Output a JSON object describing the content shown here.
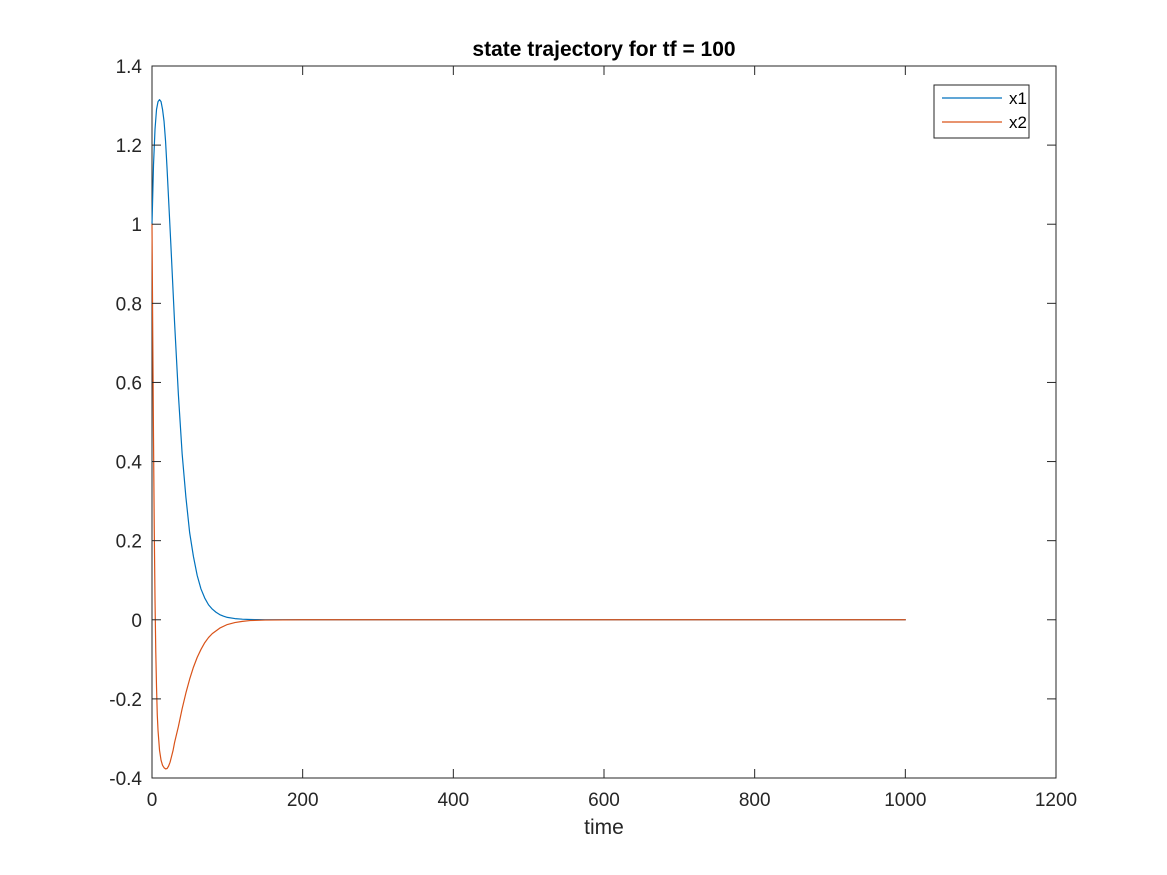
{
  "chart_data": {
    "type": "line",
    "title": "state trajectory for tf = 100",
    "xlabel": "time",
    "ylabel": "",
    "xlim": [
      0,
      1200
    ],
    "ylim": [
      -0.4,
      1.4
    ],
    "xticks": [
      0,
      200,
      400,
      600,
      800,
      1000,
      1200
    ],
    "yticks": [
      -0.4,
      -0.2,
      0,
      0.2,
      0.4,
      0.6,
      0.8,
      1,
      1.2,
      1.4
    ],
    "xtick_labels": [
      "0",
      "200",
      "400",
      "600",
      "800",
      "1000",
      "1200"
    ],
    "ytick_labels": [
      "-0.4",
      "-0.2",
      "0",
      "0.2",
      "0.4",
      "0.6",
      "0.8",
      "1",
      "1.2",
      "1.4"
    ],
    "grid": false,
    "legend_position": "top-right",
    "series": [
      {
        "name": "x1",
        "color": "#0072BD",
        "x": [
          0,
          2,
          4,
          6,
          8,
          10,
          12,
          14,
          16,
          18,
          20,
          25,
          30,
          35,
          40,
          45,
          50,
          55,
          60,
          65,
          70,
          75,
          80,
          85,
          90,
          95,
          100,
          110,
          120,
          130,
          140,
          150,
          200,
          300,
          500,
          700,
          1000
        ],
        "values": [
          1.0,
          1.15,
          1.24,
          1.29,
          1.31,
          1.315,
          1.31,
          1.29,
          1.26,
          1.21,
          1.14,
          0.95,
          0.75,
          0.57,
          0.42,
          0.31,
          0.22,
          0.16,
          0.112,
          0.078,
          0.055,
          0.038,
          0.027,
          0.019,
          0.013,
          0.009,
          0.006,
          0.003,
          0.0015,
          0.0007,
          0.0003,
          0.0001,
          0,
          0,
          0,
          0,
          0
        ]
      },
      {
        "name": "x2",
        "color": "#D95319",
        "x": [
          0,
          1,
          2,
          3,
          4,
          5,
          6,
          7,
          8,
          10,
          12,
          14,
          16,
          18,
          20,
          22,
          24,
          26,
          28,
          30,
          35,
          40,
          45,
          50,
          55,
          60,
          65,
          70,
          75,
          80,
          90,
          100,
          110,
          120,
          130,
          150,
          200,
          300,
          500,
          700,
          1000
        ],
        "values": [
          1.0,
          0.72,
          0.46,
          0.23,
          0.05,
          -0.08,
          -0.17,
          -0.24,
          -0.28,
          -0.33,
          -0.355,
          -0.368,
          -0.374,
          -0.377,
          -0.376,
          -0.37,
          -0.36,
          -0.345,
          -0.33,
          -0.31,
          -0.27,
          -0.225,
          -0.185,
          -0.15,
          -0.12,
          -0.095,
          -0.075,
          -0.058,
          -0.045,
          -0.035,
          -0.021,
          -0.012,
          -0.007,
          -0.004,
          -0.002,
          -0.0007,
          0,
          0,
          0,
          0,
          0
        ]
      }
    ]
  }
}
